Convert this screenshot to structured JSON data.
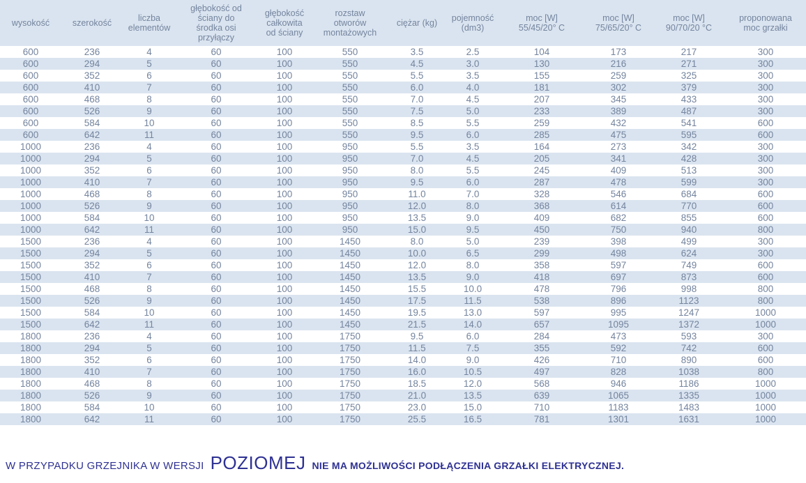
{
  "table": {
    "columns": [
      {
        "label": "wysokość"
      },
      {
        "label": "szerokość"
      },
      {
        "label": "liczba\nelementów"
      },
      {
        "label": "głębokość od\nściany do\nśrodka osi\nprzyłączy"
      },
      {
        "label": "głębokość\ncałkowita\nod ściany"
      },
      {
        "label": "rozstaw\notworów\nmontażowych"
      },
      {
        "label": "ciężar (kg)"
      },
      {
        "label": "pojemność\n(dm3)"
      },
      {
        "label": "moc [W]\n55/45/20° C"
      },
      {
        "label": "moc [W]\n75/65/20° C"
      },
      {
        "label": "moc [W]\n90/70/20 °C"
      },
      {
        "label": "proponowana\nmoc grzałki"
      }
    ],
    "rows": [
      [
        600,
        236,
        4,
        60,
        100,
        550,
        "3.5",
        "2.5",
        104,
        173,
        217,
        300
      ],
      [
        600,
        294,
        5,
        60,
        100,
        550,
        "4.5",
        "3.0",
        130,
        216,
        271,
        300
      ],
      [
        600,
        352,
        6,
        60,
        100,
        550,
        "5.5",
        "3.5",
        155,
        259,
        325,
        300
      ],
      [
        600,
        410,
        7,
        60,
        100,
        550,
        "6.0",
        "4.0",
        181,
        302,
        379,
        300
      ],
      [
        600,
        468,
        8,
        60,
        100,
        550,
        "7.0",
        "4.5",
        207,
        345,
        433,
        300
      ],
      [
        600,
        526,
        9,
        60,
        100,
        550,
        "7.5",
        "5.0",
        233,
        389,
        487,
        300
      ],
      [
        600,
        584,
        10,
        60,
        100,
        550,
        "8.5",
        "5.5",
        259,
        432,
        541,
        600
      ],
      [
        600,
        642,
        11,
        60,
        100,
        550,
        "9.5",
        "6.0",
        285,
        475,
        595,
        600
      ],
      [
        1000,
        236,
        4,
        60,
        100,
        950,
        "5.5",
        "3.5",
        164,
        273,
        342,
        300
      ],
      [
        1000,
        294,
        5,
        60,
        100,
        950,
        "7.0",
        "4.5",
        205,
        341,
        428,
        300
      ],
      [
        1000,
        352,
        6,
        60,
        100,
        950,
        "8.0",
        "5.5",
        245,
        409,
        513,
        300
      ],
      [
        1000,
        410,
        7,
        60,
        100,
        950,
        "9.5",
        "6.0",
        287,
        478,
        599,
        300
      ],
      [
        1000,
        468,
        8,
        60,
        100,
        950,
        "11.0",
        "7.0",
        328,
        546,
        684,
        600
      ],
      [
        1000,
        526,
        9,
        60,
        100,
        950,
        "12.0",
        "8.0",
        368,
        614,
        770,
        600
      ],
      [
        1000,
        584,
        10,
        60,
        100,
        950,
        "13.5",
        "9.0",
        409,
        682,
        855,
        600
      ],
      [
        1000,
        642,
        11,
        60,
        100,
        950,
        "15.0",
        "9.5",
        450,
        750,
        940,
        800
      ],
      [
        1500,
        236,
        4,
        60,
        100,
        1450,
        "8.0",
        "5.0",
        239,
        398,
        499,
        300
      ],
      [
        1500,
        294,
        5,
        60,
        100,
        1450,
        "10.0",
        "6.5",
        299,
        498,
        624,
        300
      ],
      [
        1500,
        352,
        6,
        60,
        100,
        1450,
        "12.0",
        "8.0",
        358,
        597,
        749,
        600
      ],
      [
        1500,
        410,
        7,
        60,
        100,
        1450,
        "13.5",
        "9.0",
        418,
        697,
        873,
        600
      ],
      [
        1500,
        468,
        8,
        60,
        100,
        1450,
        "15.5",
        "10.0",
        478,
        796,
        998,
        800
      ],
      [
        1500,
        526,
        9,
        60,
        100,
        1450,
        "17.5",
        "11.5",
        538,
        896,
        1123,
        800
      ],
      [
        1500,
        584,
        10,
        60,
        100,
        1450,
        "19.5",
        "13.0",
        597,
        995,
        1247,
        1000
      ],
      [
        1500,
        642,
        11,
        60,
        100,
        1450,
        "21.5",
        "14.0",
        657,
        1095,
        1372,
        1000
      ],
      [
        1800,
        236,
        4,
        60,
        100,
        1750,
        "9.5",
        "6.0",
        284,
        473,
        593,
        300
      ],
      [
        1800,
        294,
        5,
        60,
        100,
        1750,
        "11.5",
        "7.5",
        355,
        592,
        742,
        600
      ],
      [
        1800,
        352,
        6,
        60,
        100,
        1750,
        "14.0",
        "9.0",
        426,
        710,
        890,
        600
      ],
      [
        1800,
        410,
        7,
        60,
        100,
        1750,
        "16.0",
        "10.5",
        497,
        828,
        1038,
        800
      ],
      [
        1800,
        468,
        8,
        60,
        100,
        1750,
        "18.5",
        "12.0",
        568,
        946,
        1186,
        1000
      ],
      [
        1800,
        526,
        9,
        60,
        100,
        1750,
        "21.0",
        "13.5",
        639,
        1065,
        1335,
        1000
      ],
      [
        1800,
        584,
        10,
        60,
        100,
        1750,
        "23.0",
        "15.0",
        710,
        1183,
        1483,
        1000
      ],
      [
        1800,
        642,
        11,
        60,
        100,
        1750,
        "25.5",
        "16.5",
        781,
        1301,
        1631,
        1000
      ]
    ]
  },
  "footer": {
    "prefix": "W PRZYPADKU GRZEJNIKA W WERSJI",
    "highlight": "POZIOMEJ",
    "suffix": "NIE MA MOŻLIWOŚCI PODŁĄCZENIA GRZAŁKI ELEKTRYCZNEJ."
  },
  "colors": {
    "stripe": "#dae4f0",
    "cell_text": "#74849e",
    "note": "#2e3192"
  }
}
